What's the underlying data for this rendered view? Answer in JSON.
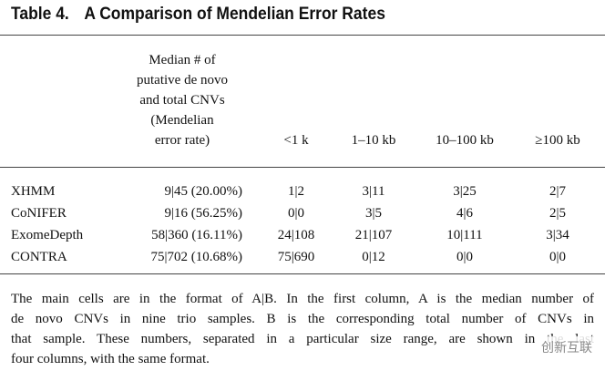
{
  "title": {
    "label": "Table 4.",
    "text": "A Comparison of Mendelian Error Rates"
  },
  "table": {
    "header": [
      [
        "Median # of",
        "putative de novo",
        "and total CNVs",
        "(Mendelian",
        "error rate)"
      ],
      "<1 k",
      "1–10 kb",
      "10–100 kb",
      "≥100 kb"
    ],
    "rows": [
      [
        "XHMM",
        "9|45 (20.00%)",
        "1|2",
        "3|11",
        "3|25",
        "2|7"
      ],
      [
        "CoNIFER",
        "9|16 (56.25%)",
        "0|0",
        "3|5",
        "4|6",
        "2|5"
      ],
      [
        "ExomeDepth",
        "58|360 (16.11%)",
        "24|108",
        "21|107",
        "10|111",
        "3|34"
      ],
      [
        "CONTRA",
        "75|702 (10.68%)",
        "75|690",
        "0|12",
        "0|0",
        "0|0"
      ]
    ]
  },
  "footnote": [
    "The main cells are in the format of A|B. In the first column, A is the median number of",
    "de novo CNVs in nine trio samples. B is the corresponding total number of CNVs in",
    "that sample. These numbers, separated in a particular size range, are shown in the last",
    "four columns, with the same format."
  ],
  "watermark": "创新互联"
}
